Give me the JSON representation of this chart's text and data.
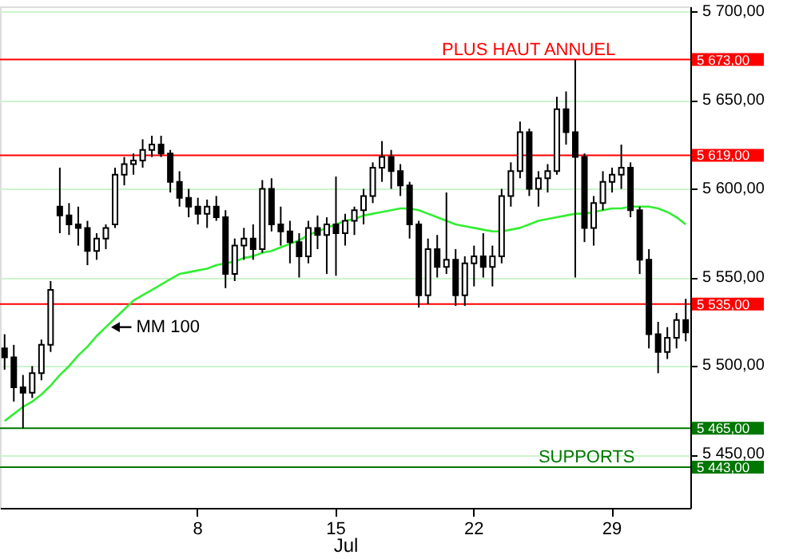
{
  "chart_data": {
    "type": "candlestick",
    "xlabel": "Jul",
    "categories": [
      null,
      null,
      null,
      null,
      null,
      null,
      null,
      null,
      null,
      null,
      null,
      null,
      null,
      null,
      null,
      null,
      null,
      null,
      null,
      null,
      null,
      "8",
      null,
      null,
      null,
      null,
      null,
      null,
      null,
      null,
      null,
      null,
      null,
      null,
      null,
      null,
      "15",
      null,
      null,
      null,
      null,
      null,
      null,
      null,
      null,
      null,
      null,
      null,
      null,
      null,
      null,
      "22",
      null,
      null,
      null,
      null,
      null,
      null,
      null,
      null,
      null,
      null,
      null,
      null,
      null,
      null,
      "29",
      null,
      null,
      null,
      null,
      null,
      null,
      null,
      null
    ],
    "ohlc": [
      [
        5510,
        5518,
        5498,
        5505
      ],
      [
        5505,
        5512,
        5480,
        5488
      ],
      [
        5488,
        5495,
        5465,
        5485
      ],
      [
        5485,
        5500,
        5482,
        5496
      ],
      [
        5496,
        5515,
        5492,
        5512
      ],
      [
        5512,
        5548,
        5508,
        5543
      ],
      [
        5590,
        5612,
        5575,
        5585
      ],
      [
        5585,
        5592,
        5574,
        5580
      ],
      [
        5580,
        5590,
        5568,
        5578
      ],
      [
        5578,
        5582,
        5557,
        5565
      ],
      [
        5565,
        5575,
        5560,
        5572
      ],
      [
        5572,
        5580,
        5566,
        5578
      ],
      [
        5580,
        5612,
        5578,
        5608
      ],
      [
        5608,
        5618,
        5602,
        5614
      ],
      [
        5614,
        5620,
        5608,
        5616
      ],
      [
        5616,
        5628,
        5612,
        5622
      ],
      [
        5622,
        5630,
        5618,
        5625
      ],
      [
        5625,
        5630,
        5618,
        5620
      ],
      [
        5620,
        5622,
        5598,
        5604
      ],
      [
        5604,
        5610,
        5590,
        5595
      ],
      [
        5595,
        5600,
        5584,
        5590
      ],
      [
        5590,
        5595,
        5580,
        5586
      ],
      [
        5586,
        5594,
        5578,
        5590
      ],
      [
        5590,
        5596,
        5582,
        5584
      ],
      [
        5584,
        5588,
        5544,
        5552
      ],
      [
        5552,
        5572,
        5548,
        5568
      ],
      [
        5568,
        5578,
        5560,
        5572
      ],
      [
        5572,
        5580,
        5560,
        5566
      ],
      [
        5566,
        5605,
        5564,
        5600
      ],
      [
        5600,
        5606,
        5576,
        5580
      ],
      [
        5580,
        5590,
        5568,
        5576
      ],
      [
        5576,
        5582,
        5558,
        5570
      ],
      [
        5570,
        5575,
        5550,
        5562
      ],
      [
        5562,
        5582,
        5558,
        5578
      ],
      [
        5578,
        5585,
        5566,
        5574
      ],
      [
        5574,
        5584,
        5552,
        5580
      ],
      [
        5580,
        5607,
        5551,
        5575
      ],
      [
        5575,
        5586,
        5568,
        5582
      ],
      [
        5582,
        5590,
        5574,
        5588
      ],
      [
        5588,
        5600,
        5580,
        5596
      ],
      [
        5596,
        5615,
        5592,
        5612
      ],
      [
        5612,
        5627,
        5604,
        5618
      ],
      [
        5618,
        5622,
        5600,
        5610
      ],
      [
        5610,
        5614,
        5596,
        5602
      ],
      [
        5602,
        5604,
        5572,
        5580
      ],
      [
        5580,
        5582,
        5533,
        5540
      ],
      [
        5540,
        5572,
        5535,
        5566
      ],
      [
        5566,
        5574,
        5550,
        5556
      ],
      [
        5556,
        5598,
        5552,
        5560
      ],
      [
        5560,
        5566,
        5534,
        5540
      ],
      [
        5540,
        5562,
        5534,
        5558
      ],
      [
        5558,
        5568,
        5545,
        5562
      ],
      [
        5562,
        5575,
        5550,
        5556
      ],
      [
        5556,
        5568,
        5545,
        5562
      ],
      [
        5562,
        5600,
        5558,
        5596
      ],
      [
        5596,
        5615,
        5590,
        5610
      ],
      [
        5610,
        5638,
        5606,
        5632
      ],
      [
        5632,
        5634,
        5596,
        5600
      ],
      [
        5600,
        5610,
        5590,
        5606
      ],
      [
        5606,
        5614,
        5598,
        5610
      ],
      [
        5610,
        5652,
        5608,
        5645
      ],
      [
        5645,
        5655,
        5625,
        5632
      ],
      [
        5632,
        5673,
        5550,
        5618
      ],
      [
        5618,
        5620,
        5570,
        5578
      ],
      [
        5578,
        5596,
        5568,
        5592
      ],
      [
        5592,
        5610,
        5588,
        5604
      ],
      [
        5604,
        5612,
        5598,
        5608
      ],
      [
        5608,
        5625,
        5600,
        5612
      ],
      [
        5612,
        5615,
        5584,
        5588
      ],
      [
        5588,
        5590,
        5552,
        5560
      ],
      [
        5560,
        5566,
        5510,
        5518
      ],
      [
        5518,
        5525,
        5496,
        5508
      ],
      [
        5508,
        5522,
        5504,
        5516
      ],
      [
        5516,
        5530,
        5510,
        5526
      ],
      [
        5526,
        5538,
        5514,
        5519
      ]
    ],
    "series": [
      {
        "type": "line",
        "name": "MM 100",
        "color": "#33ee33",
        "values": [
          5469,
          5473,
          5477,
          5480,
          5484,
          5489,
          5495,
          5500,
          5506,
          5511,
          5517,
          5522,
          5527,
          5532,
          5537,
          5540,
          5543,
          5546,
          5549,
          5552,
          5553,
          5554,
          5555,
          5557,
          5558,
          5559,
          5561,
          5562,
          5564,
          5565,
          5567,
          5569,
          5571,
          5574,
          5576,
          5578,
          5580,
          5582,
          5583,
          5585,
          5586,
          5587,
          5588,
          5589,
          5589,
          5588,
          5586,
          5584,
          5582,
          5580,
          5579,
          5578,
          5577,
          5576,
          5576,
          5577,
          5578,
          5580,
          5582,
          5583,
          5584,
          5585,
          5586,
          5586,
          5587,
          5588,
          5589,
          5589,
          5590,
          5590,
          5590,
          5589,
          5587,
          5584,
          5580
        ]
      }
    ],
    "ylim": [
      5420,
      5703
    ],
    "yticks": [
      {
        "value": 5450,
        "label": "5 450,00"
      },
      {
        "value": 5500,
        "label": "5 500,00"
      },
      {
        "value": 5550,
        "label": "5 550,00"
      },
      {
        "value": 5600,
        "label": "5 600,00"
      },
      {
        "value": 5650,
        "label": "5 650,00"
      },
      {
        "value": 5700,
        "label": "5 700,00"
      }
    ],
    "grid": "y",
    "ref_lines": [
      {
        "axis": "y",
        "value": 5673,
        "label": "5 673,00",
        "color": "#ff0000"
      },
      {
        "axis": "y",
        "value": 5619,
        "label": "5 619,00",
        "color": "#ff0000"
      },
      {
        "axis": "y",
        "value": 5535,
        "label": "5 535,00",
        "color": "#ff0000"
      },
      {
        "axis": "y",
        "value": 5465,
        "label": "5 465,00",
        "color": "#007700"
      },
      {
        "axis": "y",
        "value": 5443,
        "label": "5 443,00",
        "color": "#007700"
      }
    ],
    "annotations": [
      {
        "text": "PLUS HAUT ANNUEL",
        "y": 5673
      },
      {
        "text": "SUPPORTS",
        "y": 5443
      }
    ]
  }
}
